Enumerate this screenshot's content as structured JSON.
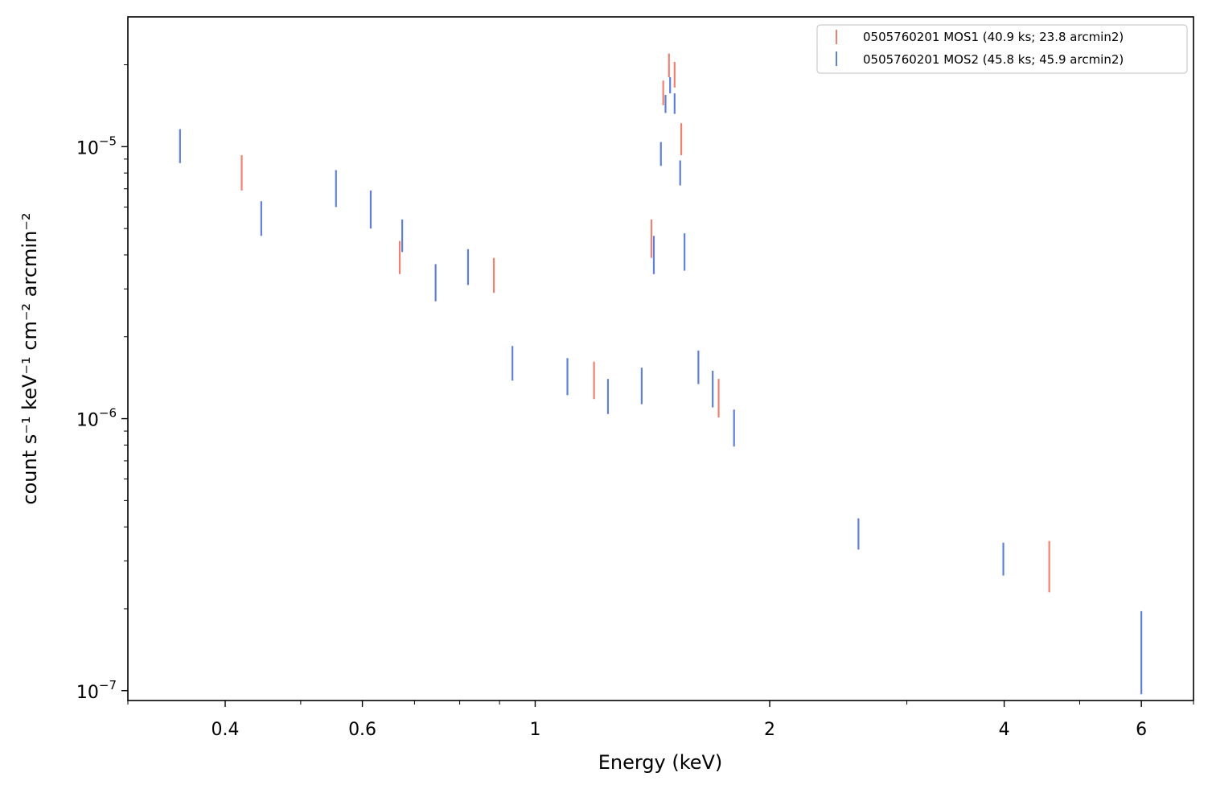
{
  "chart_data": {
    "type": "scatter",
    "x_scale": "log",
    "y_scale": "log",
    "xlabel": "Energy (keV)",
    "ylabel": "count s⁻¹ keV⁻¹ cm⁻² arcmin⁻²",
    "xlim": [
      0.3,
      7.0
    ],
    "ylim": [
      9.2e-08,
      3e-05
    ],
    "grid": false,
    "legend_placement": "top-right",
    "x_ticks": [
      {
        "value": 0.4,
        "label": "0.4"
      },
      {
        "value": 0.6,
        "label": "0.6"
      },
      {
        "value": 1,
        "label": "1"
      },
      {
        "value": 2,
        "label": "2"
      },
      {
        "value": 4,
        "label": "4"
      },
      {
        "value": 6,
        "label": "6"
      }
    ],
    "y_ticks": [
      {
        "value": 1e-07,
        "base": "10",
        "exp": "−7"
      },
      {
        "value": 1e-06,
        "base": "10",
        "exp": "−6"
      },
      {
        "value": 1e-05,
        "base": "10",
        "exp": "−5"
      }
    ],
    "series": [
      {
        "name": "0505760201 MOS1 (40.9 ks; 23.8 arcmin2)",
        "color": "#f08070",
        "points": [
          {
            "x": 0.42,
            "ylo": 6.9e-06,
            "yhi": 9.3e-06
          },
          {
            "x": 0.67,
            "ylo": 3.4e-06,
            "yhi": 4.5e-06
          },
          {
            "x": 0.885,
            "ylo": 2.9e-06,
            "yhi": 3.9e-06
          },
          {
            "x": 1.19,
            "ylo": 1.18e-06,
            "yhi": 1.62e-06
          },
          {
            "x": 1.41,
            "ylo": 3.9e-06,
            "yhi": 5.4e-06
          },
          {
            "x": 1.46,
            "ylo": 1.42e-05,
            "yhi": 1.75e-05
          },
          {
            "x": 1.485,
            "ylo": 1.8e-05,
            "yhi": 2.2e-05
          },
          {
            "x": 1.51,
            "ylo": 1.65e-05,
            "yhi": 2.05e-05
          },
          {
            "x": 1.54,
            "ylo": 9.3e-06,
            "yhi": 1.22e-05
          },
          {
            "x": 1.72,
            "ylo": 1.01e-06,
            "yhi": 1.4e-06
          },
          {
            "x": 4.57,
            "ylo": 2.3e-07,
            "yhi": 3.55e-07
          }
        ]
      },
      {
        "name": "0505760201 MOS2 (45.8 ks; 45.9 arcmin2)",
        "color": "#6080d8",
        "points": [
          {
            "x": 0.35,
            "ylo": 8.7e-06,
            "yhi": 1.16e-05
          },
          {
            "x": 0.445,
            "ylo": 4.7e-06,
            "yhi": 6.3e-06
          },
          {
            "x": 0.555,
            "ylo": 6e-06,
            "yhi": 8.2e-06
          },
          {
            "x": 0.615,
            "ylo": 5e-06,
            "yhi": 6.9e-06
          },
          {
            "x": 0.675,
            "ylo": 4.1e-06,
            "yhi": 5.4e-06
          },
          {
            "x": 0.745,
            "ylo": 2.7e-06,
            "yhi": 3.7e-06
          },
          {
            "x": 0.82,
            "ylo": 3.1e-06,
            "yhi": 4.2e-06
          },
          {
            "x": 0.935,
            "ylo": 1.38e-06,
            "yhi": 1.85e-06
          },
          {
            "x": 1.1,
            "ylo": 1.22e-06,
            "yhi": 1.67e-06
          },
          {
            "x": 1.24,
            "ylo": 1.04e-06,
            "yhi": 1.4e-06
          },
          {
            "x": 1.37,
            "ylo": 1.13e-06,
            "yhi": 1.54e-06
          },
          {
            "x": 1.42,
            "ylo": 3.4e-06,
            "yhi": 4.7e-06
          },
          {
            "x": 1.45,
            "ylo": 8.5e-06,
            "yhi": 1.04e-05
          },
          {
            "x": 1.47,
            "ylo": 1.33e-05,
            "yhi": 1.55e-05
          },
          {
            "x": 1.49,
            "ylo": 1.57e-05,
            "yhi": 1.8e-05
          },
          {
            "x": 1.51,
            "ylo": 1.32e-05,
            "yhi": 1.57e-05
          },
          {
            "x": 1.535,
            "ylo": 7.2e-06,
            "yhi": 8.9e-06
          },
          {
            "x": 1.555,
            "ylo": 3.5e-06,
            "yhi": 4.8e-06
          },
          {
            "x": 1.62,
            "ylo": 1.34e-06,
            "yhi": 1.78e-06
          },
          {
            "x": 1.69,
            "ylo": 1.1e-06,
            "yhi": 1.5e-06
          },
          {
            "x": 1.8,
            "ylo": 7.9e-07,
            "yhi": 1.08e-06
          },
          {
            "x": 2.6,
            "ylo": 3.3e-07,
            "yhi": 4.3e-07
          },
          {
            "x": 3.99,
            "ylo": 2.65e-07,
            "yhi": 3.5e-07
          },
          {
            "x": 6.0,
            "ylo": 9.7e-08,
            "yhi": 1.96e-07
          }
        ]
      }
    ]
  }
}
